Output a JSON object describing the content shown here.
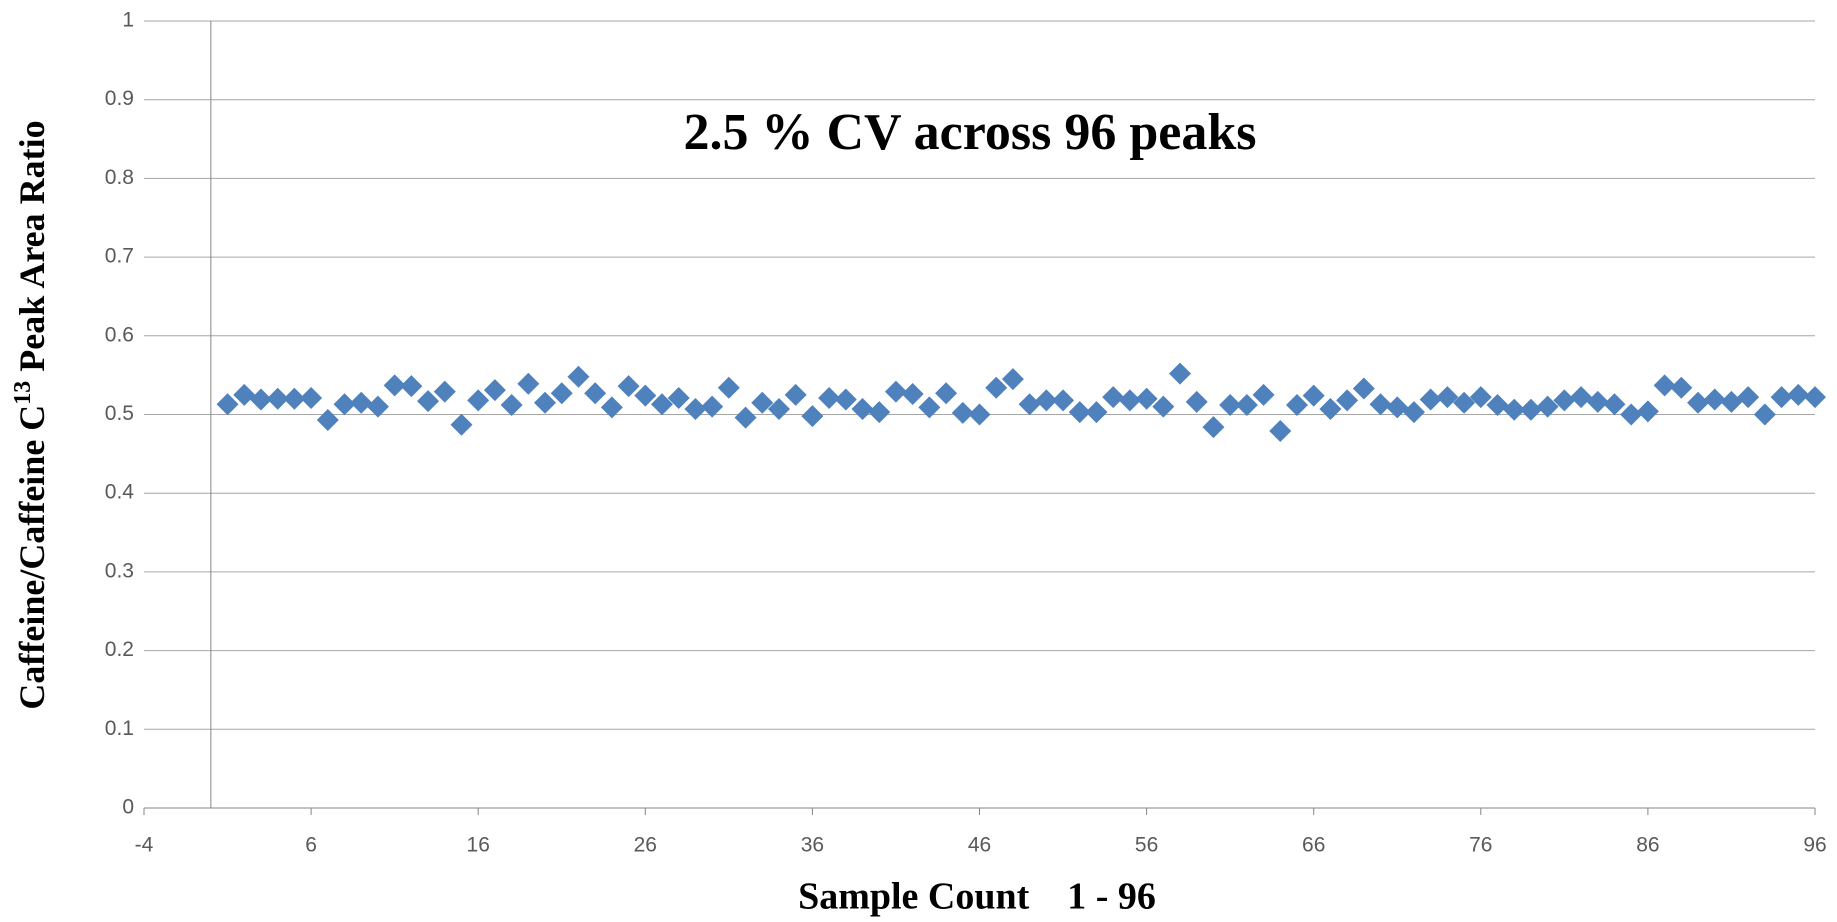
{
  "chart_data": {
    "type": "scatter",
    "annotation": "2.5 % CV across 96 peaks",
    "x_label": "Sample Count    1 - 96",
    "y_label": [
      "Caffeine/Caffeine C",
      "13",
      " Peak Area Ratio"
    ],
    "x": [
      1,
      2,
      3,
      4,
      5,
      6,
      7,
      8,
      9,
      10,
      11,
      12,
      13,
      14,
      15,
      16,
      17,
      18,
      19,
      20,
      21,
      22,
      23,
      24,
      25,
      26,
      27,
      28,
      29,
      30,
      31,
      32,
      33,
      34,
      35,
      36,
      37,
      38,
      39,
      40,
      41,
      42,
      43,
      44,
      45,
      46,
      47,
      48,
      49,
      50,
      51,
      52,
      53,
      54,
      55,
      56,
      57,
      58,
      59,
      60,
      61,
      62,
      63,
      64,
      65,
      66,
      67,
      68,
      69,
      70,
      71,
      72,
      73,
      74,
      75,
      76,
      77,
      78,
      79,
      80,
      81,
      82,
      83,
      84,
      85,
      86,
      87,
      88,
      89,
      90,
      91,
      92,
      93,
      94,
      95,
      96
    ],
    "values": [
      0.513,
      0.525,
      0.519,
      0.52,
      0.52,
      0.521,
      0.493,
      0.513,
      0.515,
      0.51,
      0.537,
      0.536,
      0.517,
      0.529,
      0.487,
      0.518,
      0.531,
      0.512,
      0.539,
      0.515,
      0.527,
      0.548,
      0.527,
      0.509,
      0.536,
      0.524,
      0.513,
      0.521,
      0.507,
      0.51,
      0.534,
      0.496,
      0.515,
      0.507,
      0.525,
      0.498,
      0.521,
      0.519,
      0.507,
      0.503,
      0.529,
      0.526,
      0.509,
      0.527,
      0.502,
      0.5,
      0.534,
      0.545,
      0.513,
      0.518,
      0.518,
      0.503,
      0.503,
      0.522,
      0.518,
      0.52,
      0.51,
      0.552,
      0.516,
      0.484,
      0.512,
      0.512,
      0.525,
      0.479,
      0.512,
      0.524,
      0.507,
      0.518,
      0.533,
      0.513,
      0.509,
      0.503,
      0.519,
      0.522,
      0.515,
      0.522,
      0.512,
      0.506,
      0.506,
      0.51,
      0.518,
      0.522,
      0.516,
      0.513,
      0.5,
      0.504,
      0.537,
      0.534,
      0.515,
      0.519,
      0.516,
      0.522,
      0.5,
      0.522,
      0.525,
      0.522
    ],
    "color": "#4f81bd",
    "xlim": [
      -4,
      96
    ],
    "xticks": [
      -4,
      6,
      16,
      26,
      36,
      46,
      56,
      66,
      76,
      86,
      96
    ],
    "ylim": [
      0,
      1
    ],
    "yticks": [
      0,
      0.1,
      0.2,
      0.3,
      0.4,
      0.5,
      0.6,
      0.7,
      0.8,
      0.9,
      1
    ],
    "grid": true
  }
}
